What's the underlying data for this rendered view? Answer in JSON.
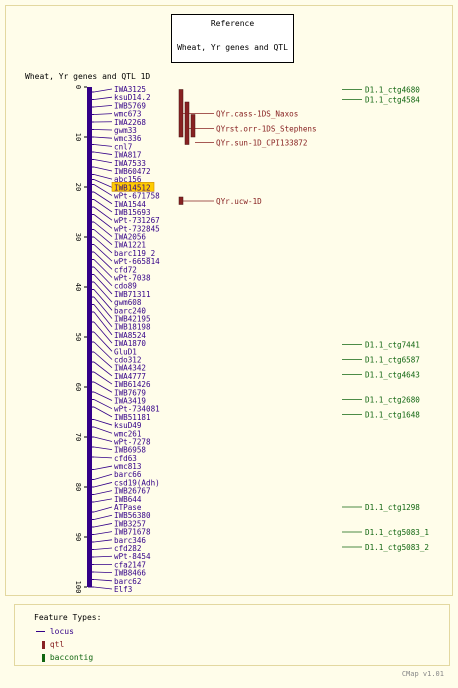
{
  "reference": {
    "title": "Reference",
    "subtitle": "Wheat, Yr genes and QTL"
  },
  "map": {
    "title": "Wheat, Yr genes and QTL 1D",
    "axis_ticks": [
      "0",
      "10",
      "20",
      "30",
      "40",
      "50",
      "60",
      "70",
      "80",
      "90",
      "100"
    ],
    "axis_max": 100
  },
  "markers": [
    {
      "label": "IWA3125",
      "pos": 1.0
    },
    {
      "label": "ksuD14.2",
      "pos": 2.5
    },
    {
      "label": "IWB5769",
      "pos": 4.0
    },
    {
      "label": "wmc673",
      "pos": 5.5
    },
    {
      "label": "IWA2268",
      "pos": 7.0
    },
    {
      "label": "gwm33",
      "pos": 8.5
    },
    {
      "label": "wmc336",
      "pos": 10.0
    },
    {
      "label": "cnl7",
      "pos": 11.5
    },
    {
      "label": "IWA817",
      "pos": 13.0
    },
    {
      "label": "IWA7533",
      "pos": 14.5
    },
    {
      "label": "IWB60472",
      "pos": 16.0
    },
    {
      "label": "abc156",
      "pos": 17.5
    },
    {
      "label": "IWB14512",
      "pos": 18.5,
      "highlight": true
    },
    {
      "label": "wPt-671758",
      "pos": 19.5
    },
    {
      "label": "IWA1544",
      "pos": 21.0
    },
    {
      "label": "IWB15693",
      "pos": 22.5
    },
    {
      "label": "wPt-731267",
      "pos": 24.0
    },
    {
      "label": "wPt-732845",
      "pos": 25.5
    },
    {
      "label": "IWA2056",
      "pos": 27.0
    },
    {
      "label": "IWA1221",
      "pos": 28.5
    },
    {
      "label": "barc119_2",
      "pos": 30.0
    },
    {
      "label": "wPt-665814",
      "pos": 31.5
    },
    {
      "label": "cfd72",
      "pos": 33.0
    },
    {
      "label": "wPt-7038",
      "pos": 34.5
    },
    {
      "label": "cdo89",
      "pos": 36.0
    },
    {
      "label": "IWB71311",
      "pos": 37.5
    },
    {
      "label": "gwm608",
      "pos": 39.0
    },
    {
      "label": "barc240",
      "pos": 40.5
    },
    {
      "label": "IWB42195",
      "pos": 42.0
    },
    {
      "label": "IWB18198",
      "pos": 43.5
    },
    {
      "label": "IWA8524",
      "pos": 45.0
    },
    {
      "label": "IWA1870",
      "pos": 47.0
    },
    {
      "label": "GluD1",
      "pos": 49.0
    },
    {
      "label": "cdo312",
      "pos": 51.0
    },
    {
      "label": "IWA4342",
      "pos": 53.0
    },
    {
      "label": "IWA4777",
      "pos": 55.0
    },
    {
      "label": "IWB61426",
      "pos": 57.0
    },
    {
      "label": "IWB7679",
      "pos": 59.0
    },
    {
      "label": "IWA3419",
      "pos": 61.0
    },
    {
      "label": "wPt-734081",
      "pos": 62.5
    },
    {
      "label": "IWB51181",
      "pos": 64.0
    },
    {
      "label": "ksuD49",
      "pos": 66.5
    },
    {
      "label": "wmc261",
      "pos": 68.0
    },
    {
      "label": "wPt-7278",
      "pos": 70.0
    },
    {
      "label": "IWB6958",
      "pos": 72.0
    },
    {
      "label": "cfd63",
      "pos": 74.0
    },
    {
      "label": "wmc813",
      "pos": 76.5
    },
    {
      "label": "barc66",
      "pos": 78.5
    },
    {
      "label": "csd19(Adh)",
      "pos": 80.0
    },
    {
      "label": "IWB26767",
      "pos": 81.5
    },
    {
      "label": "IWB644",
      "pos": 83.0
    },
    {
      "label": "ATPase",
      "pos": 85.0
    },
    {
      "label": "IWB56380",
      "pos": 86.5
    },
    {
      "label": "IWB3257",
      "pos": 88.0
    },
    {
      "label": "IWB71678",
      "pos": 89.5
    },
    {
      "label": "barc346",
      "pos": 91.0
    },
    {
      "label": "cfd282",
      "pos": 92.5
    },
    {
      "label": "wPt-8454",
      "pos": 94.0
    },
    {
      "label": "cfa2147",
      "pos": 95.5
    },
    {
      "label": "IWB8466",
      "pos": 97.0
    },
    {
      "label": "barc62",
      "pos": 98.5
    },
    {
      "label": "Elf3",
      "pos": 100.0
    }
  ],
  "qtls": [
    {
      "label": "QYr.cass-1DS_Naxos",
      "start": 0.5,
      "end": 10.0,
      "col": 0,
      "label_pos": 5.3
    },
    {
      "label": "QYrst.orr-1DS_Stephens",
      "start": 3.0,
      "end": 11.5,
      "col": 1,
      "label_pos": 8.3
    },
    {
      "label": "QYr.sun-1D_CPI133872",
      "start": 5.5,
      "end": 10.0,
      "col": 2,
      "label_pos": 11.1
    },
    {
      "label": "QYr.ucw-1D",
      "start": 22.0,
      "end": 23.5,
      "col": 0,
      "label_pos": 22.8
    }
  ],
  "contigs": [
    {
      "label": "D1.1_ctg4680",
      "pos": 0.5
    },
    {
      "label": "D1.1_ctg4584",
      "pos": 2.5
    },
    {
      "label": "D1.1_ctg7441",
      "pos": 51.5
    },
    {
      "label": "D1.1_ctg6587",
      "pos": 54.5
    },
    {
      "label": "D1.1_ctg4643",
      "pos": 57.5
    },
    {
      "label": "D1.1_ctg2680",
      "pos": 62.5
    },
    {
      "label": "D1.1_ctg1648",
      "pos": 65.5
    },
    {
      "label": "D1.1_ctg1298",
      "pos": 84.0
    },
    {
      "label": "D1.1_ctg5083_1",
      "pos": 89.0
    },
    {
      "label": "D1.1_ctg5083_2",
      "pos": 92.0
    }
  ],
  "legend": {
    "title": "Feature Types:",
    "items": [
      {
        "label": "locus",
        "color": "#330088",
        "shape": "line"
      },
      {
        "label": "qtl",
        "color": "#882222",
        "shape": "bar"
      },
      {
        "label": "baccontig",
        "color": "#116611",
        "shape": "bar"
      }
    ]
  },
  "footer": "CMap v1.01",
  "colors": {
    "marker": "#330088",
    "qtl": "#882222",
    "contig": "#116611",
    "highlight": "#ffcc00"
  }
}
